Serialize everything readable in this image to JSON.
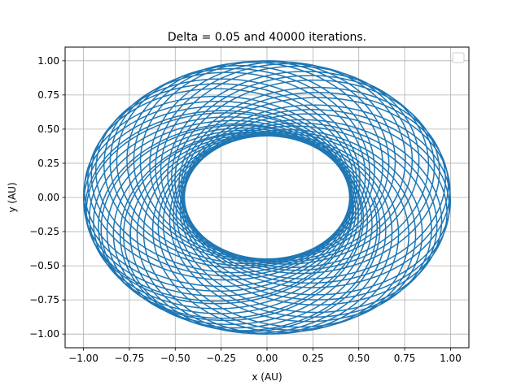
{
  "chart_data": {
    "type": "line",
    "title": "Delta = 0.05 and 40000 iterations.",
    "xlabel": "x (AU)",
    "ylabel": "y (AU)",
    "xlim": [
      -1.1,
      1.1
    ],
    "ylim": [
      -1.1,
      1.1
    ],
    "x_ticks": [
      -1.0,
      -0.75,
      -0.5,
      -0.25,
      0.0,
      0.25,
      0.5,
      0.75,
      1.0
    ],
    "x_tick_labels": [
      "−1.00",
      "−0.75",
      "−0.50",
      "−0.25",
      "0.00",
      "0.25",
      "0.50",
      "0.75",
      "1.00"
    ],
    "y_ticks": [
      -1.0,
      -0.75,
      -0.5,
      -0.25,
      0.0,
      0.25,
      0.5,
      0.75,
      1.0
    ],
    "y_tick_labels": [
      "−1.00",
      "−0.75",
      "−0.50",
      "−0.25",
      "0.00",
      "0.25",
      "0.50",
      "0.75",
      "1.00"
    ],
    "grid": true,
    "legend": {
      "position": "top-right",
      "entries": []
    },
    "series": [
      {
        "shape": "precessing ellipse (rosette)",
        "outer_radius": 1.0,
        "inner_radius": 0.45,
        "color": "#1f77b4"
      }
    ]
  }
}
